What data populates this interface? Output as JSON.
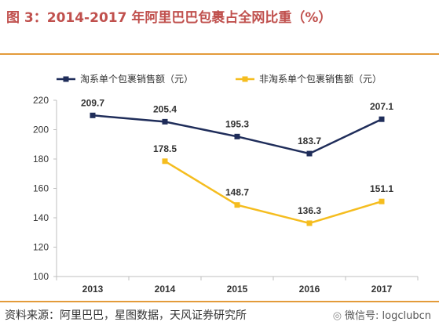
{
  "header": {
    "title": "图 3：2014-2017 年阿里巴巴包裹占全网比重（%）"
  },
  "footer": {
    "source": "资料来源：阿里巴巴，星图数据，天风证券研究所",
    "watermark_icon": "wechat-icon",
    "watermark": "微信号: logclubcn"
  },
  "colors": {
    "series_1": "#1f2d5a",
    "series_2": "#f5bd1f",
    "rule": "#e39b3a",
    "title": "#c0504d"
  },
  "chart_data": {
    "type": "line",
    "title": "图 3：2014-2017 年阿里巴巴包裹占全网比重（%）",
    "xlabel": "",
    "ylabel": "",
    "categories": [
      "2013",
      "2014",
      "2015",
      "2016",
      "2017"
    ],
    "ylim": [
      100,
      220
    ],
    "yticks": [
      100,
      120,
      140,
      160,
      180,
      200,
      220
    ],
    "grid": false,
    "legend_position": "top-left",
    "series": [
      {
        "name": "淘系单个包裹销售额（元）",
        "color": "#1f2d5a",
        "values": [
          209.7,
          205.4,
          195.3,
          183.7,
          207.1
        ]
      },
      {
        "name": "非淘系单个包裹销售额（元）",
        "color": "#f5bd1f",
        "values": [
          null,
          178.5,
          148.7,
          136.3,
          151.1
        ]
      }
    ]
  }
}
